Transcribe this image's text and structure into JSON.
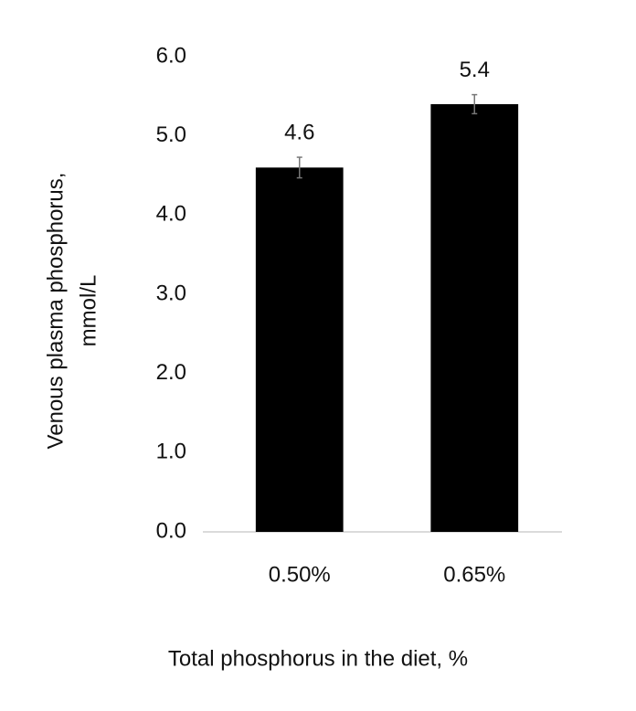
{
  "chart_data": {
    "type": "bar",
    "categories": [
      "0.50%",
      "0.65%"
    ],
    "values": [
      4.6,
      5.4
    ],
    "errors": [
      0.13,
      0.12
    ],
    "color": "#000000",
    "x_label": "Total phosphorus in the diet, %",
    "y_label": [
      "Venous plasma phosphorus,",
      "mmol/L"
    ],
    "ylim": [
      0,
      6
    ],
    "yticks": [
      {
        "value": 0,
        "label": "0.0"
      },
      {
        "value": 1,
        "label": "1.0"
      },
      {
        "value": 2,
        "label": "2.0"
      },
      {
        "value": 3,
        "label": "3.0"
      },
      {
        "value": 4,
        "label": "4.0"
      },
      {
        "value": 5,
        "label": "5.0"
      },
      {
        "value": 6,
        "label": "6.0"
      }
    ],
    "grid": false
  }
}
